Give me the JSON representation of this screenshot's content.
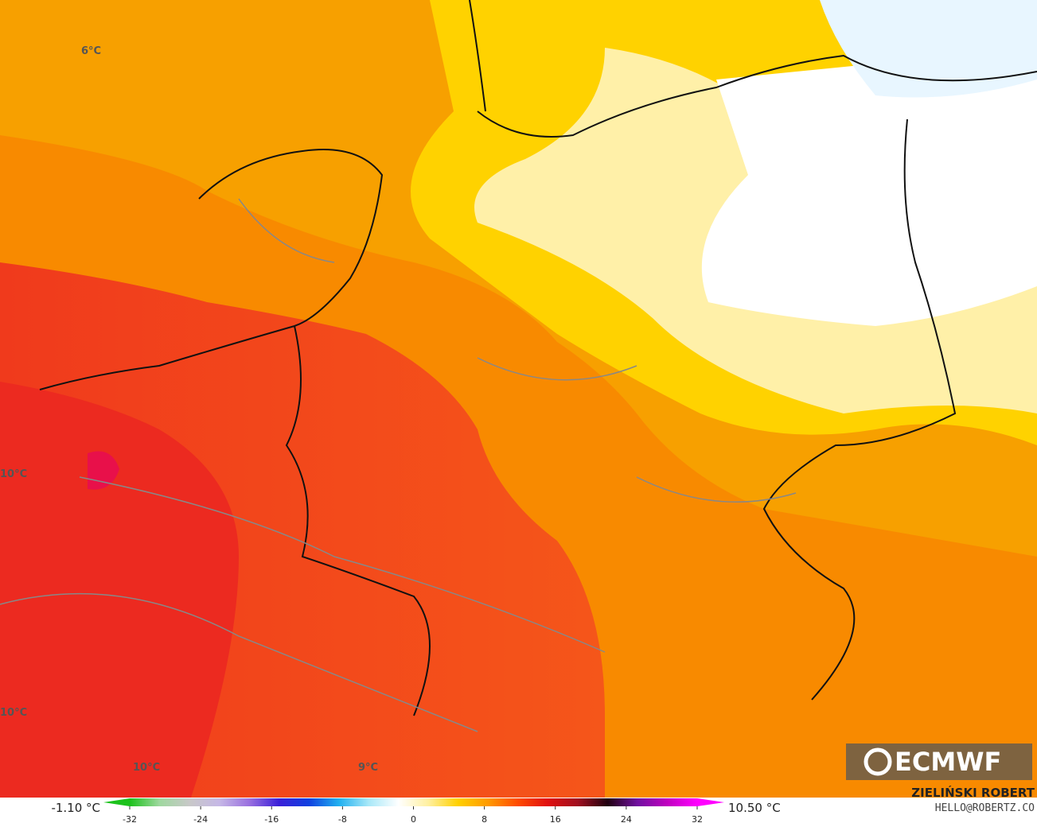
{
  "map": {
    "labels": [
      "6°C",
      "10°C",
      "10°C",
      "10°C",
      "9°C"
    ]
  },
  "colorbar": {
    "min_label": "-1.10 °C",
    "max_label": "10.50 °C",
    "lim": [
      -32,
      32
    ],
    "ticks": [
      -32,
      -24,
      -16,
      -8,
      0,
      8,
      16,
      24,
      32
    ],
    "colors": [
      "#1cc21c",
      "#9fd89f",
      "#c8c8c8",
      "#c6b8e6",
      "#9a70e0",
      "#3a20d8",
      "#1040e0",
      "#20b0f0",
      "#a8e8f8",
      "#ffffff",
      "#fff0a0",
      "#ffd000",
      "#ff9a00",
      "#ff4a00",
      "#e01010",
      "#a01020",
      "#200010",
      "#7010a0",
      "#c000c0",
      "#ff00ff"
    ]
  },
  "logo": "ECMWF",
  "author": "ZIELIŃSKI ROBERT",
  "contact": "HELLO@ROBERTZ.CO"
}
